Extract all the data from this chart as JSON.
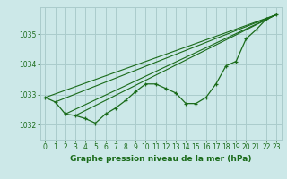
{
  "bg_color": "#cce8e8",
  "grid_color": "#aacccc",
  "line_color": "#1a6b1a",
  "xlabel": "Graphe pression niveau de la mer (hPa)",
  "xlim": [
    -0.5,
    23.5
  ],
  "ylim": [
    1031.5,
    1035.9
  ],
  "yticks": [
    1032,
    1033,
    1034,
    1035
  ],
  "xticks": [
    0,
    1,
    2,
    3,
    4,
    5,
    6,
    7,
    8,
    9,
    10,
    11,
    12,
    13,
    14,
    15,
    16,
    17,
    18,
    19,
    20,
    21,
    22,
    23
  ],
  "main_x": [
    0,
    1,
    2,
    3,
    4,
    5,
    6,
    7,
    8,
    9,
    10,
    11,
    12,
    13,
    14,
    15,
    16,
    17,
    18,
    19,
    20,
    21,
    22,
    23
  ],
  "main_y": [
    1032.9,
    1032.75,
    1032.35,
    1032.3,
    1032.2,
    1032.05,
    1032.35,
    1032.55,
    1032.8,
    1033.1,
    1033.35,
    1033.35,
    1033.2,
    1033.05,
    1032.7,
    1032.7,
    1032.9,
    1033.35,
    1033.95,
    1034.1,
    1034.85,
    1035.15,
    1035.5,
    1035.65
  ],
  "line2_x": [
    0,
    23
  ],
  "line2_y": [
    1032.9,
    1035.65
  ],
  "line3_x": [
    1,
    23
  ],
  "line3_y": [
    1032.75,
    1035.65
  ],
  "line4_x": [
    2,
    23
  ],
  "line4_y": [
    1032.35,
    1035.65
  ],
  "line5_x": [
    3,
    23
  ],
  "line5_y": [
    1032.3,
    1035.65
  ],
  "tick_fontsize": 5.5,
  "xlabel_fontsize": 6.5
}
